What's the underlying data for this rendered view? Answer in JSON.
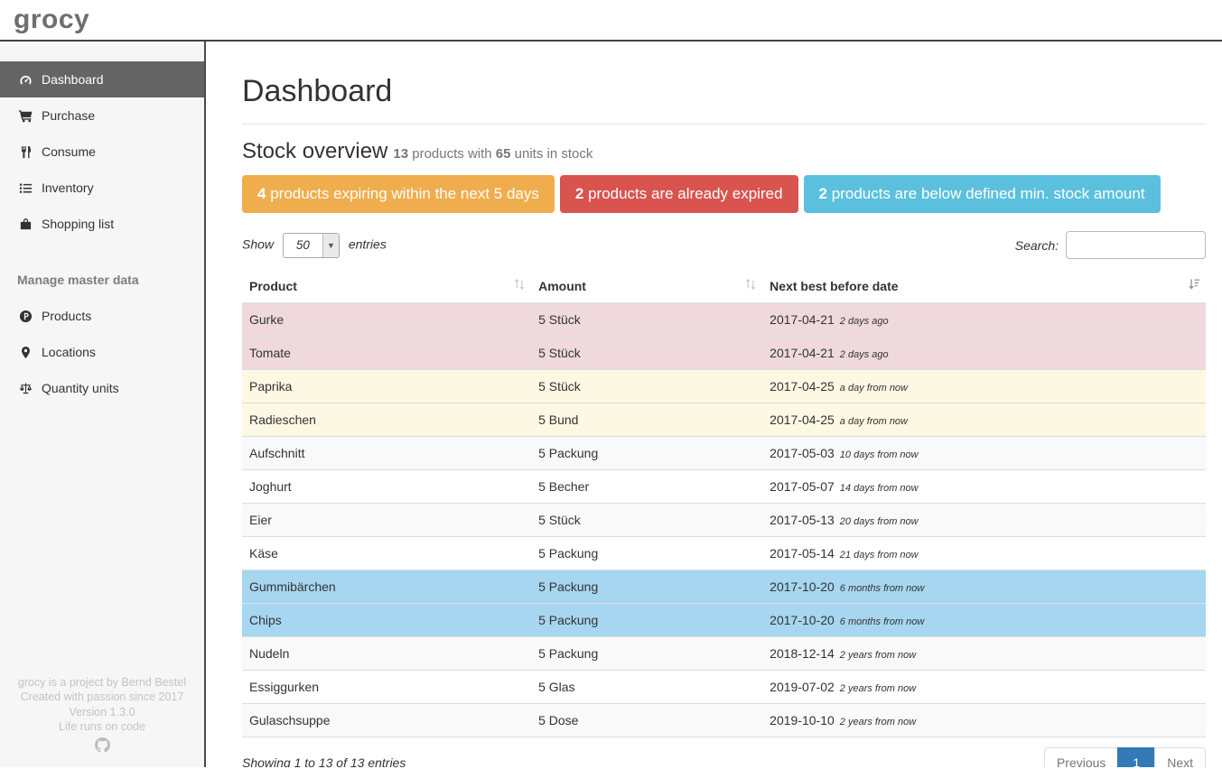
{
  "app": {
    "logo": "grocy"
  },
  "colors": {
    "accent": "#337ab7",
    "badge_expiring": "#f0ad4e",
    "badge_expired": "#d9534f",
    "badge_belowmin": "#5bc0de",
    "row_expired": "#efd9dc",
    "row_expiring": "#fcf8e3",
    "row_belowmin": "#a6d6f0"
  },
  "sidebar": {
    "items": [
      {
        "label": "Dashboard",
        "icon": "tachometer",
        "active": true
      },
      {
        "label": "Purchase",
        "icon": "shopping-cart",
        "active": false
      },
      {
        "label": "Consume",
        "icon": "utensils",
        "active": false
      },
      {
        "label": "Inventory",
        "icon": "list",
        "active": false
      },
      {
        "label": "Shopping list",
        "icon": "shopping-bag",
        "active": false
      }
    ],
    "section_heading": "Manage master data",
    "master_items": [
      {
        "label": "Products",
        "icon": "product-circle",
        "active": false
      },
      {
        "label": "Locations",
        "icon": "map-marker",
        "active": false
      },
      {
        "label": "Quantity units",
        "icon": "balance-scale",
        "active": false
      }
    ],
    "footer_lines": [
      "grocy is a project by Bernd Bestel",
      "Created with passion since 2017",
      "Version 1.3.0",
      "Life runs on code"
    ]
  },
  "main": {
    "title": "Dashboard",
    "section": {
      "title": "Stock overview",
      "products_count": "13",
      "text_products": "products with",
      "units_count": "65",
      "text_units": "units in stock"
    },
    "badges": [
      {
        "count": "4",
        "label": "products expiring within the next 5 days",
        "color_key": "badge_expiring"
      },
      {
        "count": "2",
        "label": "products are already expired",
        "color_key": "badge_expired"
      },
      {
        "count": "2",
        "label": "products are below defined min. stock amount",
        "color_key": "badge_belowmin"
      }
    ],
    "controls": {
      "show_label": "Show",
      "page_size": "50",
      "entries_label": "entries",
      "search_label": "Search:",
      "search_value": ""
    },
    "table": {
      "columns": [
        "Product",
        "Amount",
        "Next best before date"
      ],
      "rows": [
        {
          "product": "Gurke",
          "amount": "5 Stück",
          "date": "2017-04-21",
          "timeago": "2 days ago",
          "status": "expired"
        },
        {
          "product": "Tomate",
          "amount": "5 Stück",
          "date": "2017-04-21",
          "timeago": "2 days ago",
          "status": "expired"
        },
        {
          "product": "Paprika",
          "amount": "5 Stück",
          "date": "2017-04-25",
          "timeago": "a day from now",
          "status": "expiring"
        },
        {
          "product": "Radieschen",
          "amount": "5 Bund",
          "date": "2017-04-25",
          "timeago": "a day from now",
          "status": "expiring"
        },
        {
          "product": "Aufschnitt",
          "amount": "5 Packung",
          "date": "2017-05-03",
          "timeago": "10 days from now",
          "status": "none"
        },
        {
          "product": "Joghurt",
          "amount": "5 Becher",
          "date": "2017-05-07",
          "timeago": "14 days from now",
          "status": "none"
        },
        {
          "product": "Eier",
          "amount": "5 Stück",
          "date": "2017-05-13",
          "timeago": "20 days from now",
          "status": "none"
        },
        {
          "product": "Käse",
          "amount": "5 Packung",
          "date": "2017-05-14",
          "timeago": "21 days from now",
          "status": "none"
        },
        {
          "product": "Gummibärchen",
          "amount": "5 Packung",
          "date": "2017-10-20",
          "timeago": "6 months from now",
          "status": "belowmin"
        },
        {
          "product": "Chips",
          "amount": "5 Packung",
          "date": "2017-10-20",
          "timeago": "6 months from now",
          "status": "belowmin"
        },
        {
          "product": "Nudeln",
          "amount": "5 Packung",
          "date": "2018-12-14",
          "timeago": "2 years from now",
          "status": "none"
        },
        {
          "product": "Essiggurken",
          "amount": "5 Glas",
          "date": "2019-07-02",
          "timeago": "2 years from now",
          "status": "none"
        },
        {
          "product": "Gulaschsuppe",
          "amount": "5 Dose",
          "date": "2019-10-10",
          "timeago": "2 years from now",
          "status": "none"
        }
      ]
    },
    "pagination": {
      "info": "Showing 1 to 13 of 13 entries",
      "previous_label": "Previous",
      "current_page": "1",
      "next_label": "Next"
    }
  }
}
